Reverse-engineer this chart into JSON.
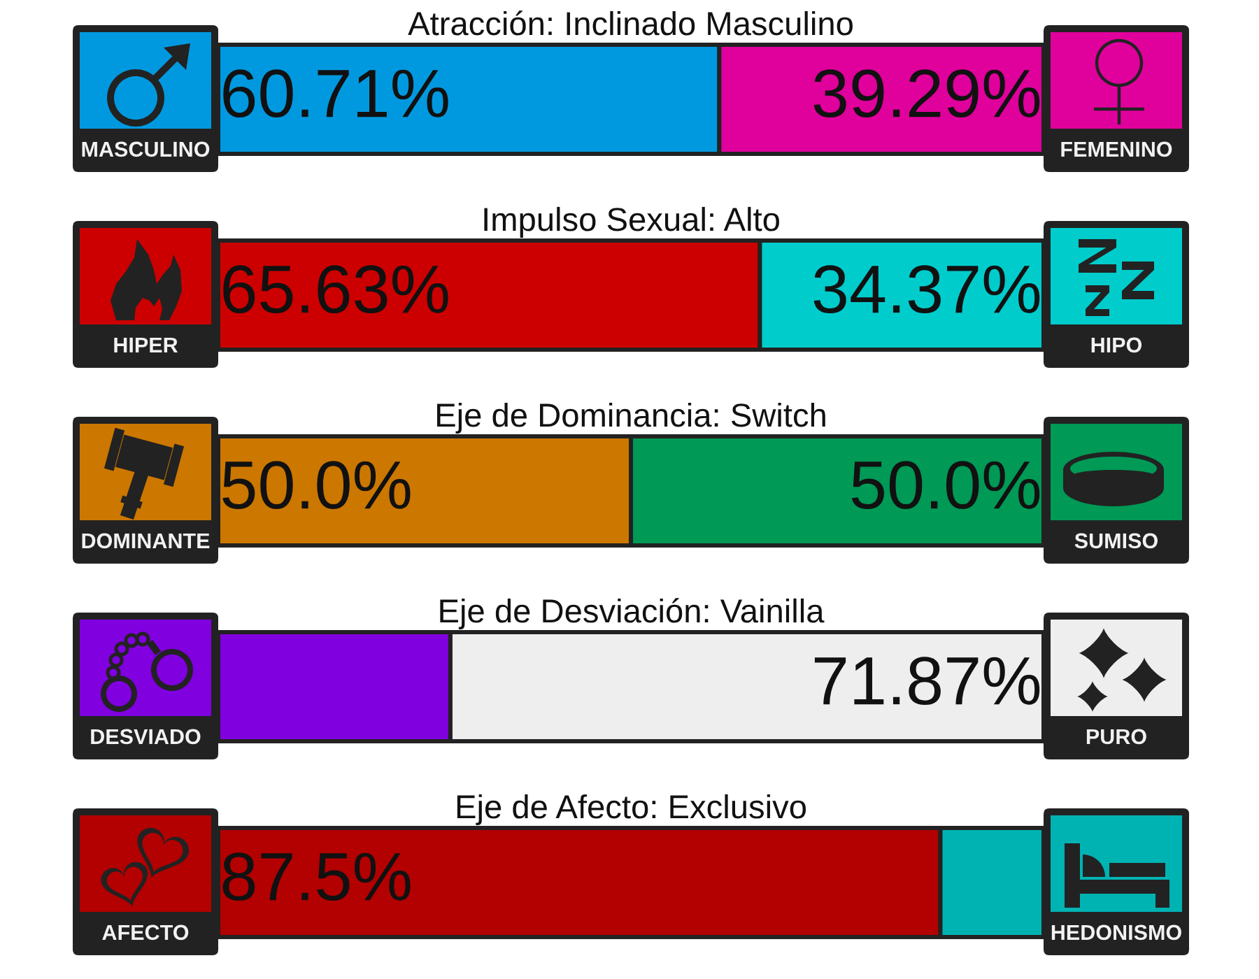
{
  "chart_data": [
    {
      "type": "bar",
      "orientation": "horizontal",
      "stacked": true,
      "title": "Atracción: Inclinado Masculino",
      "categories": [
        null
      ],
      "xlim": [
        0,
        100
      ],
      "tick_labels": false,
      "series": [
        {
          "name": "MASCULINO",
          "color": "#0099e0",
          "values": [
            60.71
          ],
          "value_labels": [
            "60.71%"
          ]
        },
        {
          "name": "FEMENINO",
          "color": "#e0009c",
          "values": [
            39.29
          ],
          "value_labels": [
            "39.29%"
          ]
        }
      ]
    },
    {
      "type": "bar",
      "orientation": "horizontal",
      "stacked": true,
      "title": "Impulso Sexual: Alto",
      "categories": [
        null
      ],
      "xlim": [
        0,
        100
      ],
      "tick_labels": false,
      "series": [
        {
          "name": "HIPER",
          "color": "#cc0000",
          "values": [
            65.63
          ],
          "value_labels": [
            "65.63%"
          ]
        },
        {
          "name": "HIPO",
          "color": "#00cccc",
          "values": [
            34.37
          ],
          "value_labels": [
            "34.37%"
          ]
        }
      ]
    },
    {
      "type": "bar",
      "orientation": "horizontal",
      "stacked": true,
      "title": "Eje de Dominancia: Switch",
      "categories": [
        null
      ],
      "xlim": [
        0,
        100
      ],
      "tick_labels": false,
      "series": [
        {
          "name": "DOMINANTE",
          "color": "#cc7700",
          "values": [
            50.0
          ],
          "value_labels": [
            "50.0%"
          ]
        },
        {
          "name": "SUMISO",
          "color": "#009955",
          "values": [
            50.0
          ],
          "value_labels": [
            "50.0%"
          ]
        }
      ]
    },
    {
      "type": "bar",
      "orientation": "horizontal",
      "stacked": true,
      "title": "Eje de Desviación: Vainilla",
      "categories": [
        null
      ],
      "xlim": [
        0,
        100
      ],
      "tick_labels": false,
      "series": [
        {
          "name": "DESVIADO",
          "color": "#8000e0",
          "values": [
            28.13
          ],
          "value_labels": [
            null
          ]
        },
        {
          "name": "PURO",
          "color": "#eeeeee",
          "values": [
            71.87
          ],
          "value_labels": [
            "71.87%"
          ]
        }
      ]
    },
    {
      "type": "bar",
      "orientation": "horizontal",
      "stacked": true,
      "title": "Eje de Afecto: Exclusivo",
      "categories": [
        null
      ],
      "xlim": [
        0,
        100
      ],
      "tick_labels": false,
      "series": [
        {
          "name": "AFECTO",
          "color": "#b30000",
          "values": [
            87.5
          ],
          "value_labels": [
            "87.5%"
          ]
        },
        {
          "name": "HEDONISMO",
          "color": "#00b3b3",
          "values": [
            12.5
          ],
          "value_labels": [
            null
          ]
        }
      ]
    }
  ]
}
